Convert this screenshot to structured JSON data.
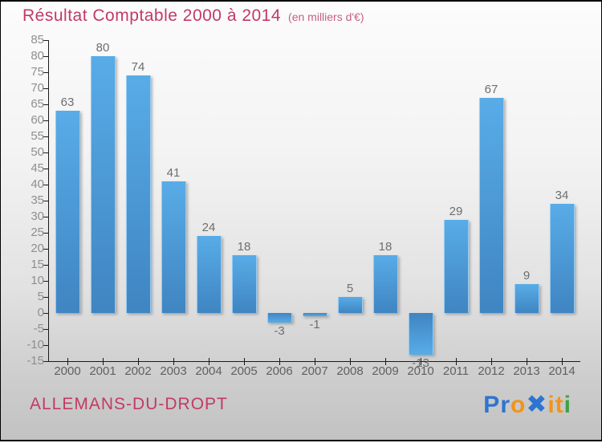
{
  "header": {
    "title": "Résultat Comptable 2000 à 2014",
    "subtitle": "(en milliers d'€)"
  },
  "chart_data": {
    "type": "bar",
    "title": "Résultat Comptable 2000 à 2014",
    "subtitle": "(en milliers d'€)",
    "categories": [
      "2000",
      "2001",
      "2002",
      "2003",
      "2004",
      "2005",
      "2006",
      "2007",
      "2008",
      "2009",
      "2010",
      "2011",
      "2012",
      "2013",
      "2014"
    ],
    "values": [
      63,
      80,
      74,
      41,
      24,
      18,
      -3,
      -1,
      5,
      18,
      -13,
      29,
      67,
      9,
      34
    ],
    "ylim": [
      -15,
      85
    ],
    "ytick_step": 5,
    "grid": false,
    "legend": false,
    "value_labels_shown": true,
    "bar_color_top": "#58ace7",
    "bar_color_bottom": "#3f85c2",
    "axis_color": "#1a1a1a",
    "ytick_label_color": "#8f8f8f",
    "xtick_label_color": "#606060",
    "value_label_color": "#6e6e6e"
  },
  "footer": {
    "municipality": "ALLEMANS-DU-DROPT",
    "logo": {
      "text": "Proxiti",
      "letters": [
        {
          "ch": "P",
          "color": "#2f74cf"
        },
        {
          "ch": "r",
          "color": "#2f74cf"
        },
        {
          "ch": "o",
          "color": "#f2941a"
        },
        {
          "ch": "✖",
          "color": "#2f74cf"
        },
        {
          "ch": "i",
          "color": "#f2941a"
        },
        {
          "ch": "t",
          "color": "#f2941a"
        },
        {
          "ch": "i",
          "color": "#3fa142"
        }
      ]
    }
  },
  "colors": {
    "title_pink": "#c23a64",
    "subtitle_pink": "#c76082",
    "background_top": "#fcfcfc",
    "background_bottom": "#c2c2c2"
  }
}
